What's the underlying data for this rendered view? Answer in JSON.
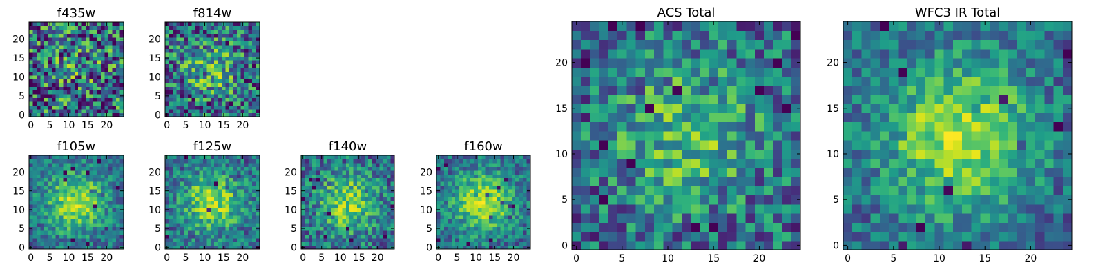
{
  "chart_data": [
    {
      "type": "heatmap",
      "title": "f435w",
      "cmap": "viridis",
      "grid": false,
      "pixels": [
        25,
        25
      ],
      "concentration": 0.25,
      "noise": 0.85,
      "seed": 11,
      "xticks": [
        "0",
        "5",
        "10",
        "15",
        "20"
      ],
      "yticks": [
        "0",
        "5",
        "10",
        "15",
        "20"
      ]
    },
    {
      "type": "heatmap",
      "title": "f814w",
      "cmap": "viridis",
      "grid": false,
      "pixels": [
        25,
        25
      ],
      "concentration": 0.45,
      "noise": 0.7,
      "seed": 23,
      "xticks": [
        "0",
        "5",
        "10",
        "15",
        "20"
      ],
      "yticks": [
        "0",
        "5",
        "10",
        "15",
        "20"
      ]
    },
    {
      "type": "heatmap",
      "title": "f105w",
      "cmap": "viridis",
      "grid": false,
      "pixels": [
        25,
        25
      ],
      "concentration": 0.8,
      "noise": 0.4,
      "seed": 37,
      "xticks": [
        "0",
        "5",
        "10",
        "15",
        "20"
      ],
      "yticks": [
        "0",
        "5",
        "10",
        "15",
        "20"
      ]
    },
    {
      "type": "heatmap",
      "title": "f125w",
      "cmap": "viridis",
      "grid": false,
      "pixels": [
        25,
        25
      ],
      "concentration": 0.75,
      "noise": 0.45,
      "seed": 41,
      "xticks": [
        "0",
        "5",
        "10",
        "15",
        "20"
      ],
      "yticks": [
        "0",
        "5",
        "10",
        "15",
        "20"
      ]
    },
    {
      "type": "heatmap",
      "title": "f140w",
      "cmap": "viridis",
      "grid": false,
      "pixels": [
        25,
        25
      ],
      "concentration": 0.7,
      "noise": 0.5,
      "seed": 53,
      "xticks": [
        "0",
        "5",
        "10",
        "15",
        "20"
      ],
      "yticks": [
        "0",
        "5",
        "10",
        "15",
        "20"
      ]
    },
    {
      "type": "heatmap",
      "title": "f160w",
      "cmap": "viridis",
      "grid": false,
      "pixels": [
        25,
        25
      ],
      "concentration": 0.85,
      "noise": 0.4,
      "seed": 67,
      "xticks": [
        "0",
        "5",
        "10",
        "15",
        "20"
      ],
      "yticks": [
        "0",
        "5",
        "10",
        "15",
        "20"
      ]
    },
    {
      "type": "heatmap",
      "title": "ACS Total",
      "cmap": "viridis",
      "grid": false,
      "pixels": [
        25,
        25
      ],
      "concentration": 0.5,
      "noise": 0.55,
      "seed": 79,
      "xticks": [
        "0",
        "5",
        "10",
        "15",
        "20"
      ],
      "yticks": [
        "0",
        "5",
        "10",
        "15",
        "20"
      ]
    },
    {
      "type": "heatmap",
      "title": "WFC3 IR Total",
      "cmap": "viridis",
      "grid": false,
      "pixels": [
        25,
        25
      ],
      "concentration": 0.85,
      "noise": 0.4,
      "seed": 97,
      "xticks": [
        "0",
        "5",
        "10",
        "15",
        "20"
      ],
      "yticks": [
        "0",
        "5",
        "10",
        "15",
        "20"
      ]
    }
  ]
}
